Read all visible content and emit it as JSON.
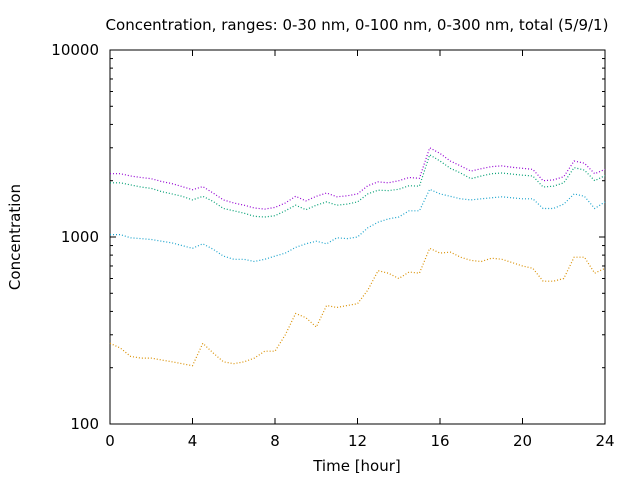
{
  "chart_data": {
    "type": "line",
    "title": "Concentration, ranges: 0-30 nm, 0-100 nm, 0-300 nm, total (5/9/1)",
    "xlabel": "Time [hour]",
    "ylabel": "Concentration",
    "xlim": [
      0,
      24
    ],
    "ylim": [
      100,
      10000
    ],
    "yscale": "log",
    "xticks": [
      0,
      4,
      8,
      12,
      16,
      20,
      24
    ],
    "yticks": [
      100,
      1000,
      10000
    ],
    "xtick_labels": [
      "0",
      "4",
      "8",
      "12",
      "16",
      "20",
      "24"
    ],
    "ytick_labels": [
      "100",
      "1000",
      "10000"
    ],
    "grid": false,
    "legend": "none",
    "line_style": "dotted",
    "x": [
      0,
      0.5,
      1,
      1.5,
      2,
      2.5,
      3,
      3.5,
      4,
      4.5,
      5,
      5.5,
      6,
      6.5,
      7,
      7.5,
      8,
      8.5,
      9,
      9.5,
      10,
      10.5,
      11,
      11.5,
      12,
      12.5,
      13,
      13.5,
      14,
      14.5,
      15,
      15.5,
      16,
      16.5,
      17,
      17.5,
      18,
      18.5,
      19,
      19.5,
      20,
      20.5,
      21,
      21.5,
      22,
      22.5,
      23,
      23.5,
      24
    ],
    "series": [
      {
        "color": "#d98f00",
        "values": [
          270,
          255,
          230,
          225,
          225,
          220,
          215,
          210,
          205,
          270,
          240,
          215,
          210,
          215,
          225,
          245,
          245,
          300,
          390,
          370,
          330,
          430,
          420,
          430,
          440,
          520,
          660,
          640,
          600,
          650,
          640,
          870,
          820,
          830,
          780,
          750,
          740,
          770,
          760,
          730,
          700,
          680,
          580,
          580,
          600,
          780,
          780,
          640,
          680
        ]
      },
      {
        "color": "#1aa3cc",
        "values": [
          1030,
          1030,
          990,
          980,
          970,
          950,
          930,
          900,
          870,
          920,
          860,
          790,
          760,
          760,
          740,
          760,
          790,
          820,
          880,
          920,
          950,
          920,
          990,
          980,
          1000,
          1120,
          1200,
          1250,
          1280,
          1380,
          1380,
          1800,
          1700,
          1650,
          1600,
          1580,
          1600,
          1620,
          1640,
          1620,
          1600,
          1600,
          1420,
          1420,
          1500,
          1700,
          1650,
          1420,
          1540
        ]
      },
      {
        "color": "#009e73",
        "values": [
          1950,
          1950,
          1900,
          1850,
          1820,
          1750,
          1700,
          1650,
          1580,
          1650,
          1550,
          1420,
          1380,
          1340,
          1290,
          1280,
          1300,
          1380,
          1480,
          1400,
          1480,
          1540,
          1480,
          1500,
          1540,
          1700,
          1780,
          1770,
          1800,
          1880,
          1870,
          2750,
          2550,
          2330,
          2200,
          2050,
          2120,
          2180,
          2200,
          2170,
          2140,
          2120,
          1850,
          1870,
          1950,
          2350,
          2280,
          2000,
          2130
        ]
      },
      {
        "color": "#9400d3",
        "values": [
          2180,
          2180,
          2120,
          2080,
          2050,
          1980,
          1930,
          1860,
          1790,
          1860,
          1720,
          1580,
          1520,
          1480,
          1430,
          1410,
          1440,
          1520,
          1650,
          1560,
          1650,
          1720,
          1640,
          1660,
          1700,
          1880,
          1970,
          1950,
          2000,
          2080,
          2060,
          3000,
          2800,
          2550,
          2400,
          2250,
          2320,
          2380,
          2400,
          2360,
          2330,
          2300,
          2000,
          2020,
          2100,
          2550,
          2480,
          2180,
          2300
        ]
      }
    ]
  }
}
